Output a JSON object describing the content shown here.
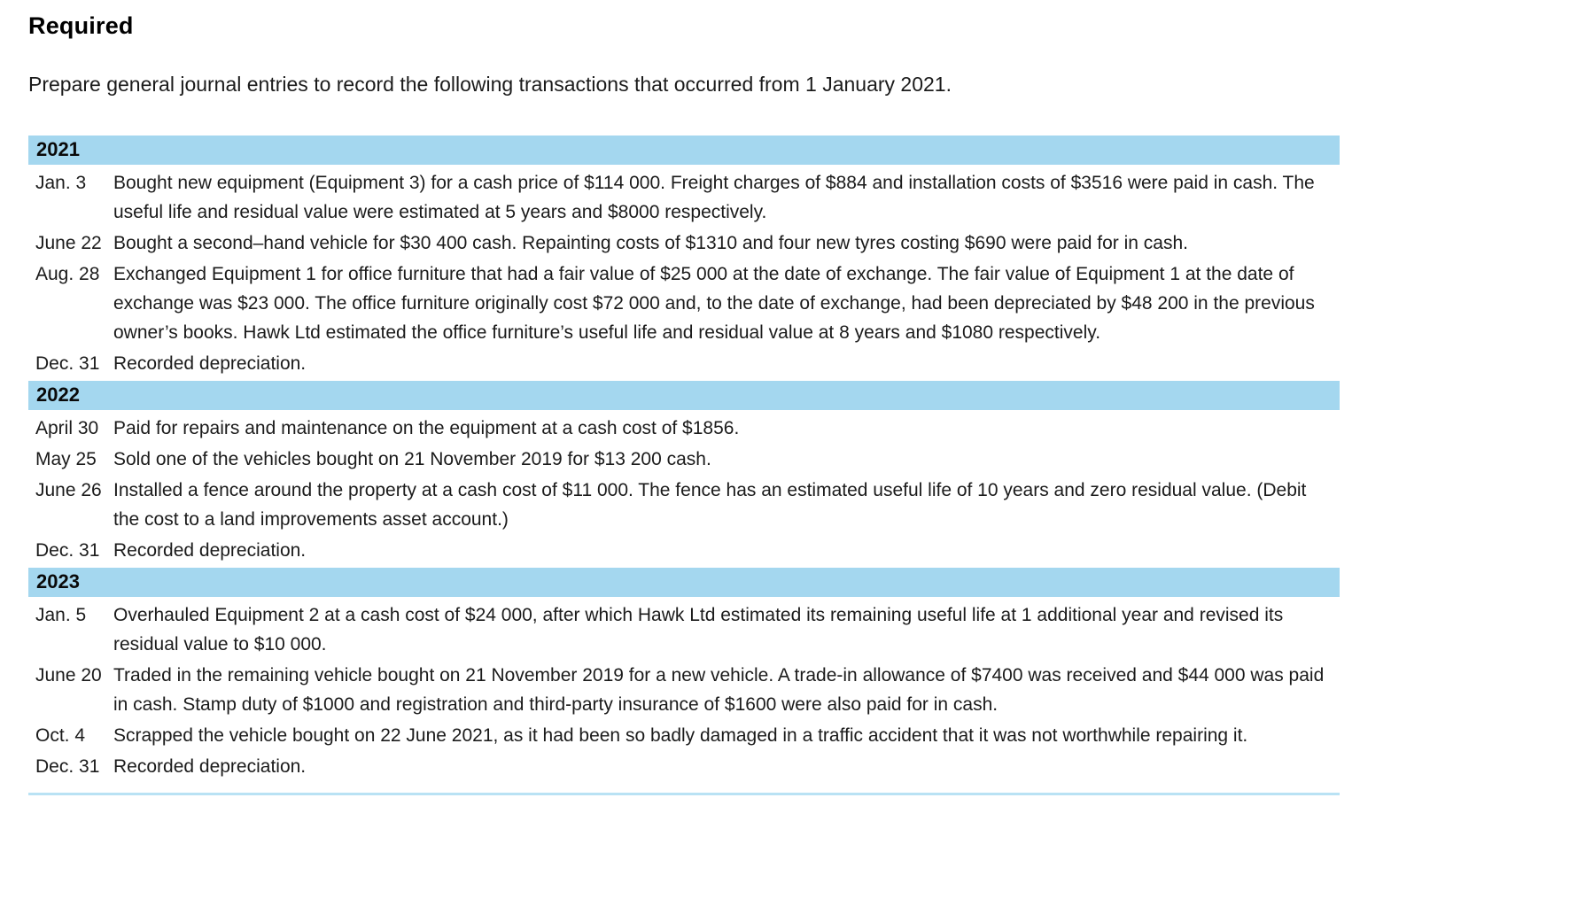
{
  "header": {
    "title": "Required",
    "instruction": "Prepare general journal entries to record the following transactions that occurred from 1 January 2021."
  },
  "table": {
    "sections": [
      {
        "year": "2021",
        "rows": [
          {
            "date": "Jan. 3",
            "description": "Bought new equipment (Equipment 3) for a cash price of $114 000. Freight charges of $884 and installation costs of $3516 were paid in cash. The useful life and residual value were estimated at 5 years and $8000 respectively."
          },
          {
            "date": "June 22",
            "description": "Bought a second–hand vehicle for $30 400 cash. Repainting costs of $1310 and four new tyres costing $690 were paid for in cash."
          },
          {
            "date": "Aug. 28",
            "description": "Exchanged Equipment 1 for office furniture that had a fair value of $25 000 at the date of exchange. The fair value of Equipment 1 at the date of exchange was $23 000. The office furniture originally cost $72 000 and, to the date of exchange, had been depreciated by $48 200 in the previous owner’s books. Hawk Ltd estimated the office furniture’s useful life and residual value at 8 years and $1080 respectively."
          },
          {
            "date": "Dec. 31",
            "description": "Recorded depreciation."
          }
        ]
      },
      {
        "year": "2022",
        "rows": [
          {
            "date": "April 30",
            "description": "Paid for repairs and maintenance on the equipment at a cash cost of $1856."
          },
          {
            "date": "May 25",
            "description": "Sold one of the vehicles bought on 21 November 2019 for $13 200 cash."
          },
          {
            "date": "June 26",
            "description": "Installed a fence around the property at a cash cost of $11 000. The fence has an estimated useful life of 10 years and zero residual value. (Debit the cost to a land improvements asset account.)"
          },
          {
            "date": "Dec. 31",
            "description": "Recorded depreciation."
          }
        ]
      },
      {
        "year": "2023",
        "rows": [
          {
            "date": "Jan. 5",
            "description": "Overhauled Equipment 2 at a cash cost of $24 000, after which Hawk Ltd estimated its remaining useful life at 1 additional year and revised its residual value to $10 000."
          },
          {
            "date": "June 20",
            "description": "Traded in the remaining vehicle bought on 21 November 2019 for a new vehicle. A trade-in allowance of $7400 was received and $44 000 was paid in cash. Stamp duty of $1000 and registration and third-party insurance of $1600 were also paid for in cash."
          },
          {
            "date": "Oct. 4",
            "description": "Scrapped the vehicle bought on 22 June 2021, as it had been so badly damaged in a traffic accident that it was not worthwhile repairing it."
          },
          {
            "date": "Dec. 31",
            "description": "Recorded depreciation."
          }
        ]
      }
    ]
  },
  "styles": {
    "band_color": "#a4d7ef",
    "divider_color": "#b9e2f4"
  }
}
